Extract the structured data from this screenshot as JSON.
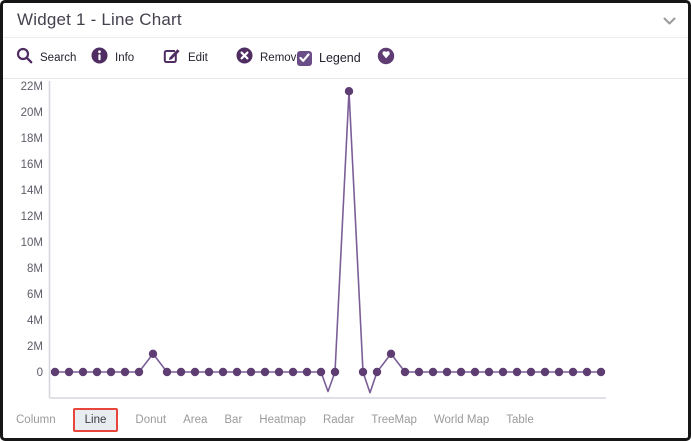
{
  "window": {
    "title": "Widget 1 - Line Chart"
  },
  "colors": {
    "accent": "#4f2d63",
    "accent2": "#6b4d87",
    "active_tab_border": "#e8453c",
    "active_tab_bg": "#e8edf2",
    "axis_line": "#d6d6de",
    "tick_text": "#5d5d68"
  },
  "toolbar": {
    "items": [
      {
        "icon": "search",
        "label": "Search"
      },
      {
        "icon": "info",
        "label": "Info"
      },
      {
        "icon": "edit",
        "label": "Edit"
      },
      {
        "icon": "remove",
        "label": "Remove"
      },
      {
        "icon": "checkbox",
        "label": "Legend",
        "checked": true
      },
      {
        "icon": "globe",
        "label": ""
      }
    ]
  },
  "chart_data": {
    "type": "line",
    "title": "",
    "xlabel": "",
    "ylabel": "",
    "legend_visible": true,
    "grid": false,
    "y_tick_labels": [
      "22M",
      "20M",
      "18M",
      "16M",
      "14M",
      "12M",
      "10M",
      "8M",
      "6M",
      "4M",
      "2M",
      "0"
    ],
    "y_tick_values_M": [
      22,
      20,
      18,
      16,
      14,
      12,
      10,
      8,
      6,
      4,
      2,
      0
    ],
    "ylim_M": [
      -2,
      24
    ],
    "num_points": 40,
    "values_M": [
      0,
      0,
      0,
      0,
      0,
      0,
      0,
      1.4,
      0,
      0,
      0,
      0,
      0,
      0,
      0,
      0,
      0,
      0,
      0,
      0,
      0,
      21.6,
      0,
      0,
      1.4,
      0,
      0,
      0,
      0,
      0,
      0,
      0,
      0,
      0,
      0,
      0,
      0,
      0,
      0,
      0
    ],
    "peak_value_M": 21.6,
    "interpolation_dips_M": [
      {
        "after_index": 19,
        "value": -1.5
      },
      {
        "after_index": 22,
        "value": -1.6
      }
    ],
    "line_color": "#7b5e97",
    "point_color": "#5e3d72"
  },
  "tabs": {
    "items": [
      {
        "label": "Column",
        "active": false
      },
      {
        "label": "Line",
        "active": true
      },
      {
        "label": "Donut",
        "active": false
      },
      {
        "label": "Area",
        "active": false
      },
      {
        "label": "Bar",
        "active": false
      },
      {
        "label": "Heatmap",
        "active": false
      },
      {
        "label": "Radar",
        "active": false
      },
      {
        "label": "TreeMap",
        "active": false
      },
      {
        "label": "World Map",
        "active": false
      },
      {
        "label": "Table",
        "active": false
      }
    ]
  }
}
